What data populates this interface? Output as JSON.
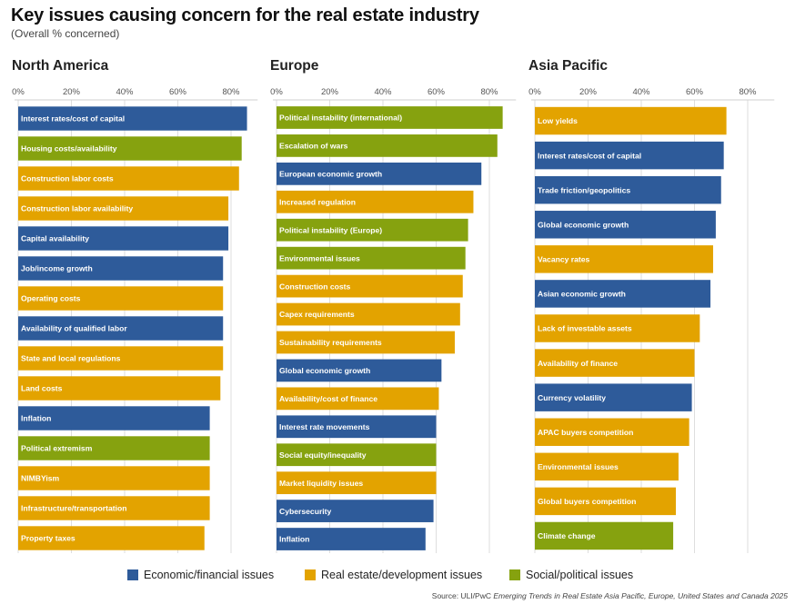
{
  "title": "Key issues causing concern for the real estate industry",
  "subtitle": "(Overall % concerned)",
  "colors": {
    "economic": "#2e5b9a",
    "realestate": "#e3a300",
    "social": "#86a20f",
    "grid": "#dedede",
    "axis_text": "#555555"
  },
  "legend": [
    {
      "key": "economic",
      "label": "Economic/financial issues"
    },
    {
      "key": "realestate",
      "label": "Real estate/development issues"
    },
    {
      "key": "social",
      "label": "Social/political issues"
    }
  ],
  "source": {
    "prefix": "Source: ULI/PwC ",
    "italic": "Emerging Trends in Real Estate Asia Pacific, Europe, United States and Canada 2025"
  },
  "chart_data": [
    {
      "type": "bar",
      "orientation": "horizontal",
      "title": "North America",
      "xlim": [
        0,
        90
      ],
      "ticks": [
        0,
        20,
        40,
        60,
        80
      ],
      "tick_labels": [
        "0%",
        "20%",
        "40%",
        "60%",
        "80%"
      ],
      "categories": [
        "Interest rates/cost of capital",
        "Housing costs/availability",
        "Construction labor costs",
        "Construction labor availability",
        "Capital availability",
        "Job/income growth",
        "Operating costs",
        "Availability of qualified labor",
        "State and local regulations",
        "Land costs",
        "Inflation",
        "Political extremism",
        "NIMBYism",
        "Infrastructure/transportation",
        "Property taxes"
      ],
      "values": [
        86,
        84,
        83,
        79,
        79,
        77,
        77,
        77,
        77,
        76,
        72,
        72,
        72,
        72,
        70
      ],
      "groups": [
        "economic",
        "social",
        "realestate",
        "realestate",
        "economic",
        "economic",
        "realestate",
        "economic",
        "realestate",
        "realestate",
        "economic",
        "social",
        "realestate",
        "realestate",
        "realestate"
      ]
    },
    {
      "type": "bar",
      "orientation": "horizontal",
      "title": "Europe",
      "xlim": [
        0,
        90
      ],
      "ticks": [
        0,
        20,
        40,
        60,
        80
      ],
      "tick_labels": [
        "0%",
        "20%",
        "40%",
        "60%",
        "80%"
      ],
      "categories": [
        "Political instability (international)",
        "Escalation of wars",
        "European economic growth",
        "Increased regulation",
        "Political instability (Europe)",
        "Environmental issues",
        "Construction costs",
        "Capex requirements",
        "Sustainability requirements",
        "Global economic growth",
        "Availability/cost of finance",
        "Interest rate movements",
        "Social equity/inequality",
        "Market liquidity issues",
        "Cybersecurity",
        "Inflation"
      ],
      "values": [
        85,
        83,
        77,
        74,
        72,
        71,
        70,
        69,
        67,
        62,
        61,
        60,
        60,
        60,
        59,
        56
      ],
      "groups": [
        "social",
        "social",
        "economic",
        "realestate",
        "social",
        "social",
        "realestate",
        "realestate",
        "realestate",
        "economic",
        "realestate",
        "economic",
        "social",
        "realestate",
        "economic",
        "economic"
      ]
    },
    {
      "type": "bar",
      "orientation": "horizontal",
      "title": "Asia Pacific",
      "xlim": [
        0,
        90
      ],
      "ticks": [
        0,
        20,
        40,
        60,
        80
      ],
      "tick_labels": [
        "0%",
        "20%",
        "40%",
        "60%",
        "80%"
      ],
      "categories": [
        "Low yields",
        "Interest rates/cost of capital",
        "Trade friction/geopolitics",
        "Global economic growth",
        "Vacancy rates",
        "Asian economic growth",
        "Lack of investable assets",
        "Availability of finance",
        "Currency volatility",
        "APAC buyers competition",
        "Environmental issues",
        "Global buyers competition",
        "Climate change"
      ],
      "values": [
        72,
        71,
        70,
        68,
        67,
        66,
        62,
        60,
        59,
        58,
        54,
        53,
        52
      ],
      "groups": [
        "realestate",
        "economic",
        "economic",
        "economic",
        "realestate",
        "economic",
        "realestate",
        "realestate",
        "economic",
        "realestate",
        "realestate",
        "realestate",
        "social"
      ]
    }
  ]
}
